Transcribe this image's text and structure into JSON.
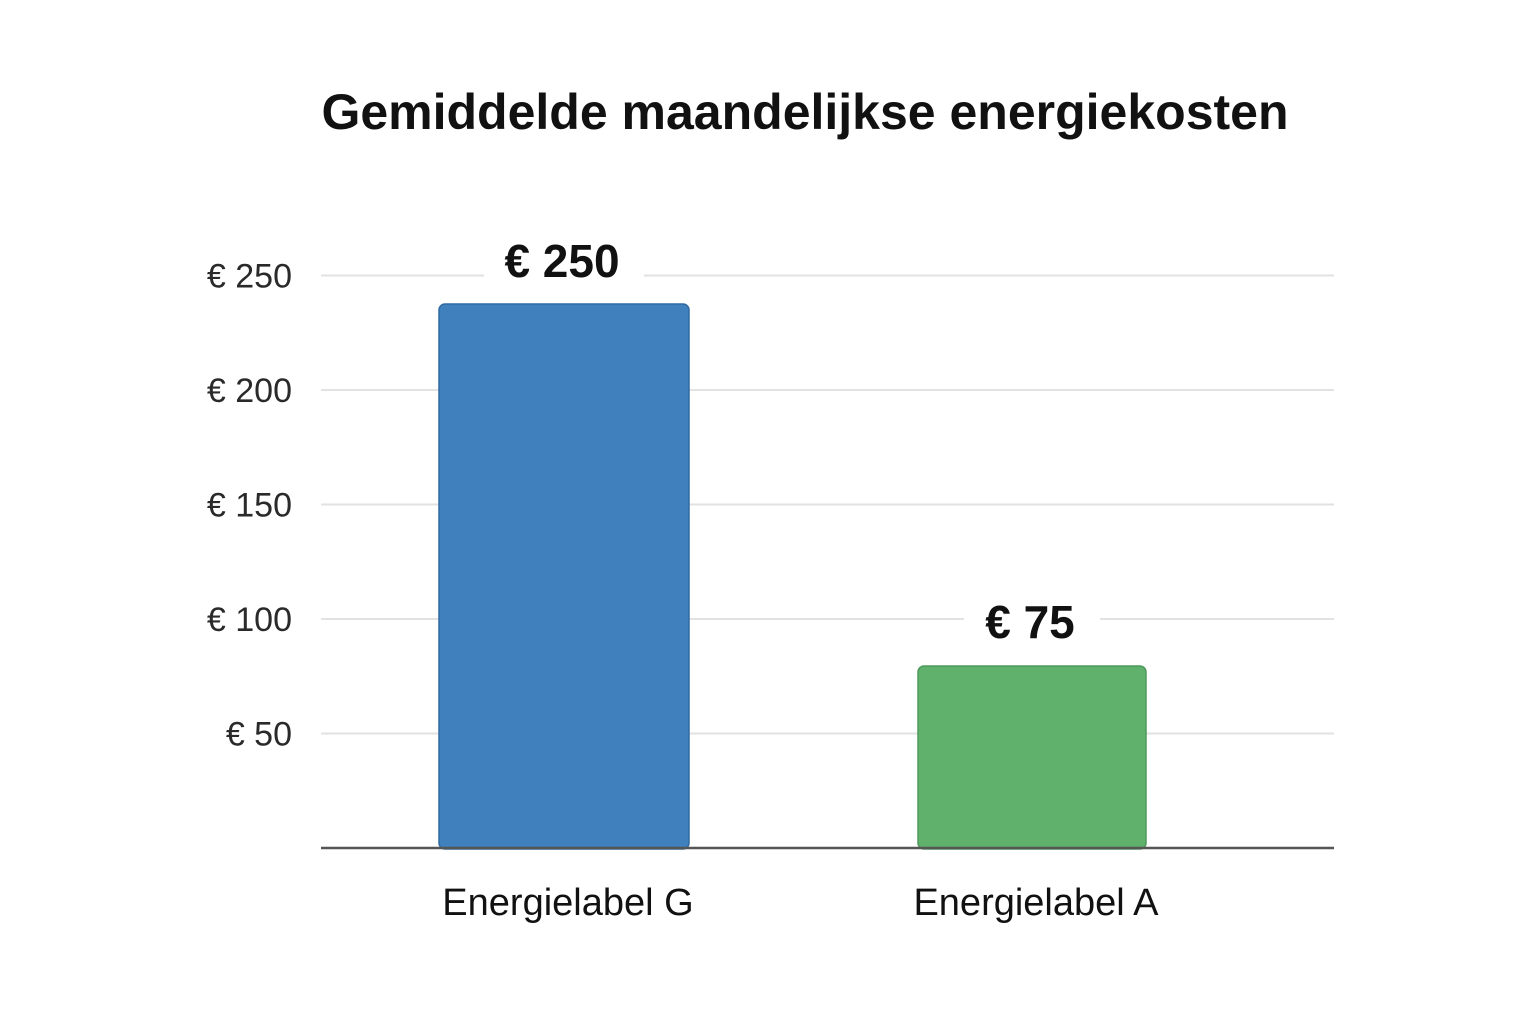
{
  "chart_data": {
    "type": "bar",
    "title": "Gemiddelde maandelijkse energiekosten",
    "categories": [
      "Energielabel G",
      "Energielabel A"
    ],
    "values": [
      250,
      75
    ],
    "value_labels": [
      "€ 250",
      "€ 75"
    ],
    "ylim": [
      0,
      250
    ],
    "yticks": [
      50,
      100,
      150,
      200,
      250
    ],
    "ytick_labels": [
      "€ 50",
      "€ 100",
      "€ 150",
      "€ 200",
      "€ 250"
    ],
    "colors": [
      "#3f80bd",
      "#5fb16c"
    ],
    "bar_edge_colors": [
      "#2f6aa3",
      "#4e9a5b"
    ],
    "grid": true,
    "legend": "none",
    "xlabel": "",
    "ylabel": ""
  }
}
